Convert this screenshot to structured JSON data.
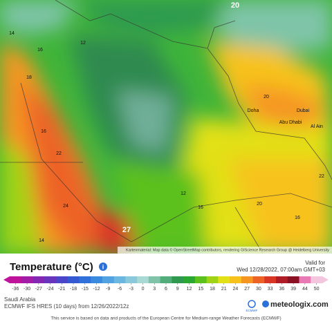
{
  "map": {
    "labels": [
      "20",
      "14",
      "16",
      "18",
      "16",
      "22",
      "24",
      "14",
      "12",
      "12",
      "16",
      "20",
      "20",
      "Dubai",
      "Doha",
      "Abu Dhabi",
      "Al Ain",
      "22",
      "16",
      "27"
    ],
    "attribution": "Kartenmaterial: Map data © OpenStreetMap contributors, rendering GIScience Research Group @ Heidelberg University"
  },
  "header": {
    "title": "Temperature (°C)",
    "valid_label": "Valid for",
    "valid_time": "Wed 12/28/2022, 07:00am GMT+03"
  },
  "legend": {
    "ticks": [
      -36,
      -30,
      -27,
      -24,
      -21,
      -18,
      -15,
      -12,
      -9,
      -6,
      -3,
      0,
      3,
      6,
      9,
      12,
      15,
      18,
      21,
      24,
      27,
      30,
      33,
      36,
      39,
      44,
      50
    ],
    "colors": [
      "#c0139b",
      "#a31ca8",
      "#8427b3",
      "#6a35bd",
      "#4b45c9",
      "#3459d2",
      "#2f70da",
      "#3a8ae0",
      "#52a2e2",
      "#6bb7df",
      "#8ac9dc",
      "#a9d9d3",
      "#7fc4a8",
      "#52ad7a",
      "#2f9a4f",
      "#2aa832",
      "#5cc11d",
      "#a0d315",
      "#e2e017",
      "#f7c21c",
      "#f59622",
      "#ed6326",
      "#d93626",
      "#b01c25",
      "#8a1022",
      "#e87ab5",
      "#f4c6de"
    ]
  },
  "footer": {
    "region": "Saudi Arabia",
    "model": "ECMWF IFS HRES (10 days) from 12/26/2022/12z",
    "brand": "meteologix.com",
    "ecmwf": "ECMWF",
    "notice": "This service is based on data and products of the European Centre for Medium-range Weather Forecasts (ECMWF)"
  }
}
